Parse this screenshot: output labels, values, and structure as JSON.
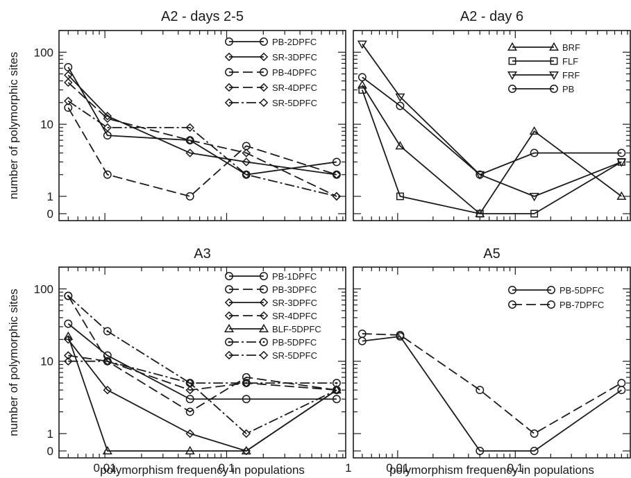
{
  "chart_data": [
    {
      "type": "line",
      "title": "A2 - days 2-5",
      "xlabel": "",
      "ylabel": "number of polymorphic sites",
      "xscale": "log",
      "yscale": "symlog",
      "xlim": [
        0.0042,
        0.95
      ],
      "ylim": [
        0,
        200
      ],
      "xticks": [],
      "yticks": [
        {
          "v": 100,
          "label": "100"
        },
        {
          "v": 10,
          "label": "10"
        },
        {
          "v": 1,
          "label": "1"
        },
        {
          "v": 0,
          "label": "0"
        }
      ],
      "legend_position": "top-right",
      "series": [
        {
          "name": "PB-2DPFC",
          "marker": "circle",
          "dash": "solid",
          "x": [
            0.005,
            0.0105,
            0.05,
            0.145,
            0.8
          ],
          "y": [
            62,
            7,
            6,
            2,
            3
          ]
        },
        {
          "name": "SR-3DPFC",
          "marker": "diamond",
          "dash": "solid",
          "x": [
            0.005,
            0.0105,
            0.05,
            0.145,
            0.8
          ],
          "y": [
            48,
            13,
            4,
            3,
            2
          ]
        },
        {
          "name": "PB-4DPFC",
          "marker": "circle",
          "dash": "dash",
          "x": [
            0.005,
            0.0105,
            0.05,
            0.145,
            0.8
          ],
          "y": [
            17,
            2,
            1,
            5,
            2
          ]
        },
        {
          "name": "SR-4DPFC",
          "marker": "diamond",
          "dash": "dash",
          "x": [
            0.005,
            0.0105,
            0.05,
            0.145,
            0.8
          ],
          "y": [
            38,
            12,
            6,
            4,
            1
          ]
        },
        {
          "name": "SR-5DPFC",
          "marker": "diamond",
          "dash": "dashdot",
          "x": [
            0.005,
            0.0105,
            0.05,
            0.145,
            0.8
          ],
          "y": [
            21,
            9,
            9,
            2,
            1
          ]
        }
      ]
    },
    {
      "type": "line",
      "title": "A2 - day 6",
      "xlabel": "",
      "ylabel": "",
      "xscale": "log",
      "yscale": "symlog",
      "xlim": [
        0.0042,
        0.95
      ],
      "ylim": [
        0,
        200
      ],
      "xticks": [],
      "yticks": [],
      "legend_position": "top-right",
      "series": [
        {
          "name": "BRF",
          "marker": "triangle-up",
          "dash": "solid",
          "x": [
            0.005,
            0.0105,
            0.05,
            0.145,
            0.8
          ],
          "y": [
            35,
            5,
            0,
            8,
            1
          ]
        },
        {
          "name": "FLF",
          "marker": "square",
          "dash": "solid",
          "x": [
            0.005,
            0.0105,
            0.05,
            0.145,
            0.8
          ],
          "y": [
            30,
            1,
            0,
            0,
            3
          ]
        },
        {
          "name": "FRF",
          "marker": "triangle-down",
          "dash": "solid",
          "x": [
            0.005,
            0.0105,
            0.05,
            0.145,
            0.8
          ],
          "y": [
            130,
            24,
            2,
            1,
            3
          ]
        },
        {
          "name": "PB",
          "marker": "circle",
          "dash": "solid",
          "x": [
            0.005,
            0.0105,
            0.05,
            0.145,
            0.8
          ],
          "y": [
            45,
            18,
            2,
            4,
            4
          ]
        }
      ]
    },
    {
      "type": "line",
      "title": "A3",
      "xlabel": "polymorphism frequency in populations",
      "ylabel": "number of polymorphic sites",
      "xscale": "log",
      "yscale": "symlog",
      "xlim": [
        0.0042,
        0.95
      ],
      "ylim": [
        0,
        200
      ],
      "xticks": [
        {
          "v": 0.01,
          "label": "0.01"
        },
        {
          "v": 0.1,
          "label": "0.1"
        },
        {
          "v": 1,
          "label": "1"
        }
      ],
      "yticks": [
        {
          "v": 100,
          "label": "100"
        },
        {
          "v": 10,
          "label": "10"
        },
        {
          "v": 1,
          "label": "1"
        },
        {
          "v": 0,
          "label": "0"
        }
      ],
      "legend_position": "top-right",
      "series": [
        {
          "name": "PB-1DPFC",
          "marker": "circle",
          "dash": "solid",
          "x": [
            0.005,
            0.0105,
            0.05,
            0.145,
            0.8
          ],
          "y": [
            33,
            12,
            3,
            3,
            3
          ]
        },
        {
          "name": "PB-3DPFC",
          "marker": "circle",
          "dash": "dash",
          "x": [
            0.005,
            0.0105,
            0.05,
            0.145,
            0.8
          ],
          "y": [
            80,
            10,
            2,
            6,
            4
          ]
        },
        {
          "name": "SR-3DPFC",
          "marker": "diamond",
          "dash": "solid",
          "x": [
            0.005,
            0.0105,
            0.05,
            0.145,
            0.8
          ],
          "y": [
            20,
            4,
            1,
            0,
            4
          ]
        },
        {
          "name": "SR-4DPFC",
          "marker": "diamond",
          "dash": "dash",
          "x": [
            0.005,
            0.0105,
            0.05,
            0.145,
            0.8
          ],
          "y": [
            12,
            10,
            4,
            5,
            4
          ]
        },
        {
          "name": "BLF-5DPFC",
          "marker": "triangle-up",
          "dash": "solid",
          "x": [
            0.005,
            0.0105,
            0.05,
            0.145,
            0.8
          ],
          "y": [
            22,
            0,
            0,
            0,
            4
          ]
        },
        {
          "name": "PB-5DPFC",
          "marker": "circle-dot",
          "dash": "dashdot",
          "x": [
            0.005,
            0.0105,
            0.05,
            0.145,
            0.8
          ],
          "y": [
            80,
            26,
            5,
            5,
            5
          ]
        },
        {
          "name": "SR-5DPFC",
          "marker": "diamond",
          "dash": "dashdot",
          "x": [
            0.005,
            0.0105,
            0.05,
            0.145,
            0.8
          ],
          "y": [
            10,
            10,
            5,
            1,
            4
          ]
        }
      ]
    },
    {
      "type": "line",
      "title": "A5",
      "xlabel": "polymorphism frequency in populations",
      "ylabel": "",
      "xscale": "log",
      "yscale": "symlog",
      "xlim": [
        0.0042,
        0.95
      ],
      "ylim": [
        0,
        200
      ],
      "xticks": [
        {
          "v": 0.01,
          "label": "0.01"
        },
        {
          "v": 0.1,
          "label": "0.1"
        }
      ],
      "yticks": [],
      "legend_position": "top-right",
      "series": [
        {
          "name": "PB-5DPFC",
          "marker": "circle",
          "dash": "solid",
          "x": [
            0.005,
            0.0105,
            0.05,
            0.145,
            0.8
          ],
          "y": [
            19,
            22,
            0,
            0,
            4
          ]
        },
        {
          "name": "PB-7DPFC",
          "marker": "circle",
          "dash": "dash",
          "x": [
            0.005,
            0.0105,
            0.05,
            0.145,
            0.8
          ],
          "y": [
            24,
            23,
            4,
            1,
            5
          ]
        }
      ]
    }
  ]
}
